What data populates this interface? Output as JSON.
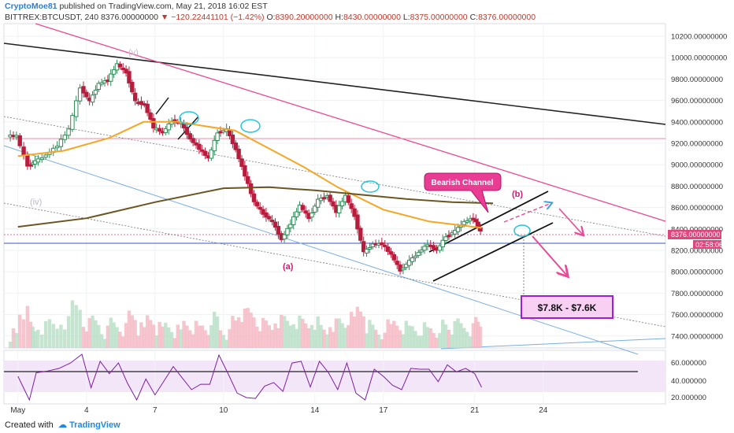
{
  "header": {
    "author": "CryptoMoe81",
    "published": "published on TradingView.com, May 21, 2018 16:02 EST",
    "symbol": "BITTREX:BTCUSDT, 240",
    "price": "8376.00000000",
    "change": "−120.22441101 (−1.42%)",
    "o_label": "O:",
    "o": "8390.20000000",
    "h_label": "H:",
    "h": "8430.00000000",
    "l_label": "L:",
    "l": "8375.00000000",
    "c_label": "C:",
    "c": "8376.00000000"
  },
  "footer": {
    "created_with": "Created with",
    "brand": "TradingView"
  },
  "colors": {
    "up": "#2e8b57",
    "down": "#b71c3c",
    "ma50": "#f5a623",
    "ma200": "#6b5520",
    "pink_line": "#e84a97",
    "blue_line": "#7aaee0",
    "purple_box": "#b000e0"
  },
  "annotations": {
    "bearish_channel": "Bearish Channel",
    "target_box": "$7.8K - $7.6K",
    "wave_v": "(v)",
    "wave_iv": "(iv)",
    "wave_a": "(a)",
    "wave_b": "(b)"
  },
  "chart_data": {
    "type": "line",
    "title": "BITTREX:BTCUSDT, 240",
    "price_axis": {
      "ticks": [
        "10200.00000000",
        "10000.00000000",
        "9800.00000000",
        "9600.00000000",
        "9400.00000000",
        "9200.00000000",
        "9000.00000000",
        "8800.00000000",
        "8600.00000000",
        "8400.00000000",
        "8200.00000000",
        "8000.00000000",
        "7800.00000000",
        "7600.00000000",
        "7400.00000000"
      ],
      "last_price_label": "8376.00000000",
      "countdown_label": "02:58:06"
    },
    "rsi_axis": {
      "ticks": [
        "60.000000",
        "40.000000",
        "20.000000"
      ]
    },
    "x_ticks": [
      {
        "label": "May",
        "day": 1
      },
      {
        "label": "4",
        "day": 4
      },
      {
        "label": "7",
        "day": 7
      },
      {
        "label": "10",
        "day": 10
      },
      {
        "label": "14",
        "day": 14
      },
      {
        "label": "17",
        "day": 17
      },
      {
        "label": "21",
        "day": 21
      },
      {
        "label": "24",
        "day": 24
      }
    ],
    "price_series": [
      {
        "day": 1.0,
        "close": 9270
      },
      {
        "day": 1.5,
        "close": 8990
      },
      {
        "day": 1.8,
        "close": 9030
      },
      {
        "day": 2.3,
        "close": 9090
      },
      {
        "day": 2.8,
        "close": 9180
      },
      {
        "day": 3.3,
        "close": 9330
      },
      {
        "day": 3.8,
        "close": 9720
      },
      {
        "day": 4.2,
        "close": 9590
      },
      {
        "day": 4.6,
        "close": 9760
      },
      {
        "day": 5.0,
        "close": 9790
      },
      {
        "day": 5.4,
        "close": 9940
      },
      {
        "day": 5.8,
        "close": 9860
      },
      {
        "day": 6.2,
        "close": 9590
      },
      {
        "day": 6.6,
        "close": 9560
      },
      {
        "day": 7.0,
        "close": 9350
      },
      {
        "day": 7.4,
        "close": 9300
      },
      {
        "day": 7.8,
        "close": 9410
      },
      {
        "day": 8.2,
        "close": 9390
      },
      {
        "day": 8.6,
        "close": 9240
      },
      {
        "day": 9.0,
        "close": 9150
      },
      {
        "day": 9.4,
        "close": 9060
      },
      {
        "day": 9.8,
        "close": 9300
      },
      {
        "day": 10.2,
        "close": 9330
      },
      {
        "day": 10.6,
        "close": 9140
      },
      {
        "day": 11.0,
        "close": 8900
      },
      {
        "day": 11.4,
        "close": 8650
      },
      {
        "day": 11.8,
        "close": 8540
      },
      {
        "day": 12.2,
        "close": 8470
      },
      {
        "day": 12.6,
        "close": 8300
      },
      {
        "day": 13.0,
        "close": 8450
      },
      {
        "day": 13.4,
        "close": 8620
      },
      {
        "day": 13.8,
        "close": 8500
      },
      {
        "day": 14.2,
        "close": 8670
      },
      {
        "day": 14.6,
        "close": 8710
      },
      {
        "day": 15.0,
        "close": 8560
      },
      {
        "day": 15.4,
        "close": 8710
      },
      {
        "day": 15.8,
        "close": 8520
      },
      {
        "day": 16.2,
        "close": 8180
      },
      {
        "day": 16.6,
        "close": 8260
      },
      {
        "day": 17.0,
        "close": 8260
      },
      {
        "day": 17.4,
        "close": 8160
      },
      {
        "day": 17.8,
        "close": 8010
      },
      {
        "day": 18.2,
        "close": 8100
      },
      {
        "day": 18.6,
        "close": 8180
      },
      {
        "day": 19.0,
        "close": 8260
      },
      {
        "day": 19.4,
        "close": 8200
      },
      {
        "day": 19.8,
        "close": 8330
      },
      {
        "day": 20.2,
        "close": 8380
      },
      {
        "day": 20.6,
        "close": 8470
      },
      {
        "day": 21.0,
        "close": 8500
      },
      {
        "day": 21.3,
        "close": 8376
      }
    ],
    "ma50_series": [
      {
        "day": 1.0,
        "v": 9080
      },
      {
        "day": 3,
        "v": 9130
      },
      {
        "day": 5,
        "v": 9250
      },
      {
        "day": 6.5,
        "v": 9400
      },
      {
        "day": 8,
        "v": 9400
      },
      {
        "day": 9.5,
        "v": 9350
      },
      {
        "day": 10.5,
        "v": 9320
      },
      {
        "day": 12,
        "v": 9150
      },
      {
        "day": 13.5,
        "v": 8980
      },
      {
        "day": 15,
        "v": 8790
      },
      {
        "day": 17,
        "v": 8580
      },
      {
        "day": 19,
        "v": 8470
      },
      {
        "day": 21.3,
        "v": 8410
      }
    ],
    "ma200_series": [
      {
        "day": 1.0,
        "v": 8420
      },
      {
        "day": 4,
        "v": 8500
      },
      {
        "day": 7,
        "v": 8650
      },
      {
        "day": 10,
        "v": 8780
      },
      {
        "day": 12,
        "v": 8790
      },
      {
        "day": 14,
        "v": 8760
      },
      {
        "day": 16,
        "v": 8720
      },
      {
        "day": 18,
        "v": 8680
      },
      {
        "day": 20,
        "v": 8650
      },
      {
        "day": 21.8,
        "v": 8640
      }
    ]
  }
}
